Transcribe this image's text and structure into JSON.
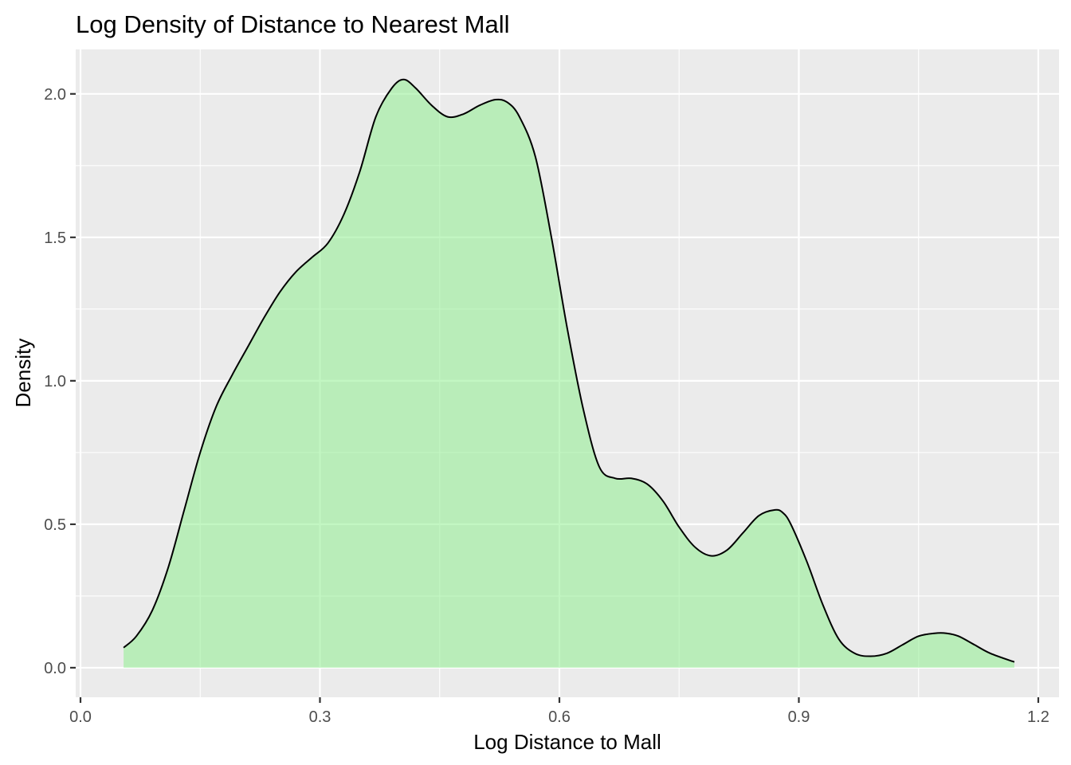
{
  "chart_data": {
    "type": "area",
    "title": "Log Density of Distance to Nearest Mall",
    "xlabel": "Log Distance to Mall",
    "ylabel": "Density",
    "xlim": [
      -0.006,
      1.226
    ],
    "ylim": [
      -0.103,
      2.155
    ],
    "x_ticks": [
      0.0,
      0.3,
      0.6,
      0.9,
      1.2
    ],
    "x_tick_labels": [
      "0.0",
      "0.3",
      "0.6",
      "0.9",
      "1.2"
    ],
    "y_ticks": [
      0.0,
      0.5,
      1.0,
      1.5,
      2.0
    ],
    "y_tick_labels": [
      "0.0",
      "0.5",
      "1.0",
      "1.5",
      "2.0"
    ],
    "grid": true,
    "fill_color": "#90EE90",
    "fill_opacity": 0.55,
    "line_color": "#000000",
    "panel_background": "#EBEBEB",
    "grid_color": "#FFFFFF",
    "series": [
      {
        "x": [
          0.054,
          0.07,
          0.09,
          0.11,
          0.13,
          0.15,
          0.17,
          0.19,
          0.21,
          0.23,
          0.25,
          0.27,
          0.29,
          0.31,
          0.33,
          0.35,
          0.37,
          0.39,
          0.405,
          0.42,
          0.44,
          0.46,
          0.48,
          0.5,
          0.52,
          0.535,
          0.55,
          0.57,
          0.59,
          0.61,
          0.63,
          0.65,
          0.67,
          0.69,
          0.71,
          0.73,
          0.75,
          0.77,
          0.79,
          0.81,
          0.83,
          0.85,
          0.87,
          0.88,
          0.89,
          0.91,
          0.93,
          0.95,
          0.97,
          0.99,
          1.01,
          1.03,
          1.05,
          1.07,
          1.085,
          1.1,
          1.12,
          1.14,
          1.17
        ],
        "y": [
          0.07,
          0.11,
          0.2,
          0.35,
          0.55,
          0.75,
          0.91,
          1.02,
          1.12,
          1.22,
          1.31,
          1.38,
          1.43,
          1.48,
          1.58,
          1.73,
          1.92,
          2.02,
          2.05,
          2.02,
          1.96,
          1.92,
          1.93,
          1.96,
          1.98,
          1.97,
          1.92,
          1.78,
          1.5,
          1.18,
          0.9,
          0.7,
          0.66,
          0.66,
          0.64,
          0.58,
          0.49,
          0.42,
          0.39,
          0.41,
          0.47,
          0.53,
          0.55,
          0.54,
          0.5,
          0.37,
          0.22,
          0.1,
          0.05,
          0.04,
          0.05,
          0.08,
          0.11,
          0.12,
          0.12,
          0.11,
          0.08,
          0.05,
          0.02
        ]
      }
    ]
  }
}
